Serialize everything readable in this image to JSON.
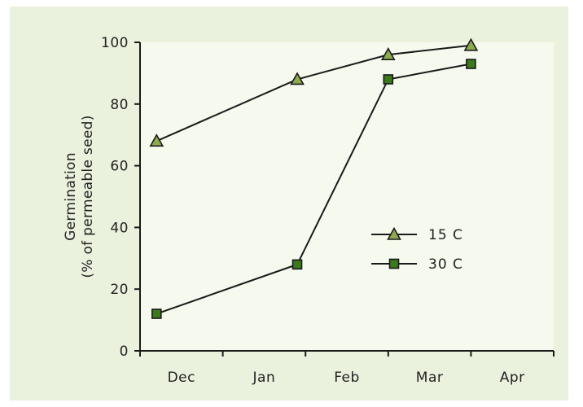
{
  "colors": {
    "panel_bg": "#eaf1dc",
    "plot_bg": "#f6f9ee",
    "axis": "#1a1a1a",
    "line": "#1a1a1a",
    "triangle_fill": "#8eaa4e",
    "square_fill": "#3a7a1c"
  },
  "chart_data": {
    "type": "line",
    "title": "",
    "xlabel": "",
    "ylabel": "Germination",
    "ylabel2": "(% of permeable seed)",
    "ylim": [
      0,
      100
    ],
    "yticks": [
      0,
      20,
      40,
      60,
      80,
      100
    ],
    "categories": [
      "Dec",
      "Jan",
      "Feb",
      "Mar",
      "Apr"
    ],
    "xlim": [
      0,
      5
    ],
    "grid": false,
    "legend_position": "center-right",
    "series": [
      {
        "name": "15 C",
        "marker": "triangle",
        "x": [
          0.2,
          1.9,
          3.0,
          4.0
        ],
        "y": [
          68,
          88,
          96,
          99
        ]
      },
      {
        "name": "30 C",
        "marker": "square",
        "x": [
          0.2,
          1.9,
          3.0,
          4.0
        ],
        "y": [
          12,
          28,
          88,
          93
        ]
      }
    ]
  }
}
